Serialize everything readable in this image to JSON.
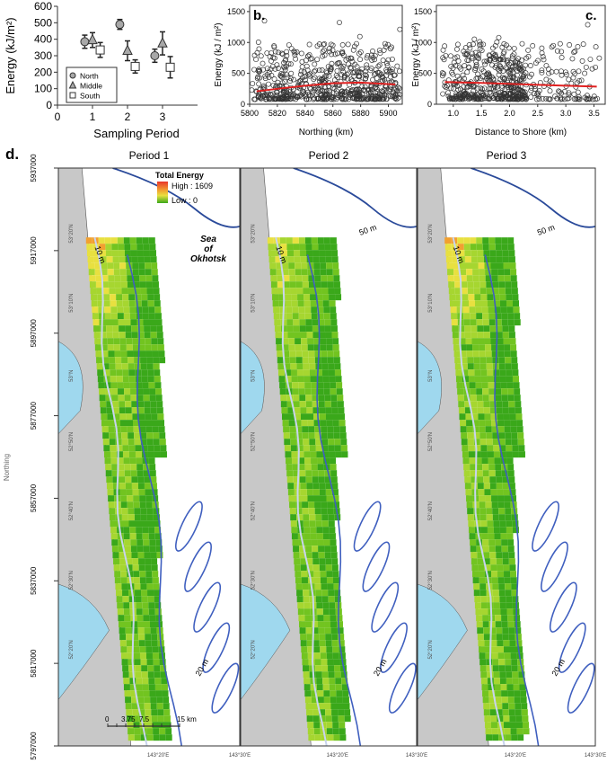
{
  "chart_data": [
    {
      "type": "scatter",
      "panel": "a",
      "ylabel": "Energy (kJ/m²)",
      "xlabel": "Sampling Period",
      "xlim": [
        0,
        4
      ],
      "ylim": [
        0,
        600
      ],
      "xticks": [
        0,
        1,
        2,
        3
      ],
      "yticks": [
        0,
        100,
        200,
        300,
        400,
        500,
        600
      ],
      "legend": {
        "position": "bottom-left",
        "entries": [
          "North",
          "Middle",
          "South"
        ]
      },
      "series": [
        {
          "name": "North",
          "marker": "circle",
          "points": [
            {
              "x": 0.78,
              "y": 385,
              "err": 40
            },
            {
              "x": 1.78,
              "y": 490,
              "err": 30
            },
            {
              "x": 2.78,
              "y": 300,
              "err": 40
            }
          ]
        },
        {
          "name": "Middle",
          "marker": "triangle",
          "points": [
            {
              "x": 1.0,
              "y": 395,
              "err": 45
            },
            {
              "x": 2.0,
              "y": 330,
              "err": 60
            },
            {
              "x": 3.0,
              "y": 375,
              "err": 70
            }
          ]
        },
        {
          "name": "South",
          "marker": "square",
          "points": [
            {
              "x": 1.22,
              "y": 335,
              "err": 45
            },
            {
              "x": 2.22,
              "y": 235,
              "err": 40
            },
            {
              "x": 3.22,
              "y": 230,
              "err": 65
            }
          ]
        }
      ]
    },
    {
      "type": "scatter",
      "panel": "b.",
      "ylabel": "Energy (kJ / m²)",
      "xlabel": "Northing (km)",
      "xlim": [
        5800,
        5910
      ],
      "ylim": [
        0,
        1600
      ],
      "xticks": [
        5800,
        5820,
        5840,
        5860,
        5880,
        5900
      ],
      "yticks": [
        0,
        500,
        1000,
        1500
      ],
      "fit_line": {
        "color": "#e02020",
        "x": [
          5805,
          5820,
          5840,
          5860,
          5880,
          5905
        ],
        "y": [
          210,
          250,
          300,
          340,
          350,
          320
        ]
      }
    },
    {
      "type": "scatter",
      "panel": "c.",
      "ylabel": "Energy (kJ / m²)",
      "xlabel": "Distance to Shore (km)",
      "xlim": [
        0.7,
        3.7
      ],
      "ylim": [
        0,
        1600
      ],
      "xticks": [
        1.0,
        1.5,
        2.0,
        2.5,
        3.0,
        3.5
      ],
      "yticks": [
        0,
        500,
        1000,
        1500
      ],
      "fit_line": {
        "color": "#e02020",
        "x": [
          0.85,
          1.5,
          2.0,
          2.5,
          3.0,
          3.55
        ],
        "y": [
          360,
          345,
          330,
          315,
          300,
          285
        ]
      }
    }
  ],
  "maps": {
    "panel_label": "d.",
    "periods": [
      "Period 1",
      "Period 2",
      "Period 3"
    ],
    "legend": {
      "title": "Total Energy",
      "high": "High : 1609",
      "low": "Low : 0"
    },
    "sea_label": "Sea\nof\nOkhotsk",
    "contours": {
      "c10": "10 m",
      "c20": "20 m",
      "c50": "50 m"
    },
    "lat_labels": [
      "53°20'N",
      "53°10'N",
      "53°N",
      "52°50'N",
      "52°40'N",
      "52°30'N",
      "52°20'N"
    ],
    "lon_labels": [
      "143°20'E",
      "143°30'E"
    ],
    "scale": {
      "ticks": [
        "0",
        "3.75",
        "7.5",
        "15 km"
      ]
    },
    "northing_title": "Northing",
    "northing_ticks": [
      "5937000",
      "5917000",
      "5897000",
      "5877000",
      "5857000",
      "5837000",
      "5817000",
      "5797000"
    ]
  },
  "colors": {
    "land": "#c8c8c8",
    "lagoon": "#9fd8ee",
    "contour": "#3f5fbf",
    "contour_light": "#c8d4ee",
    "fit": "#e02020"
  }
}
